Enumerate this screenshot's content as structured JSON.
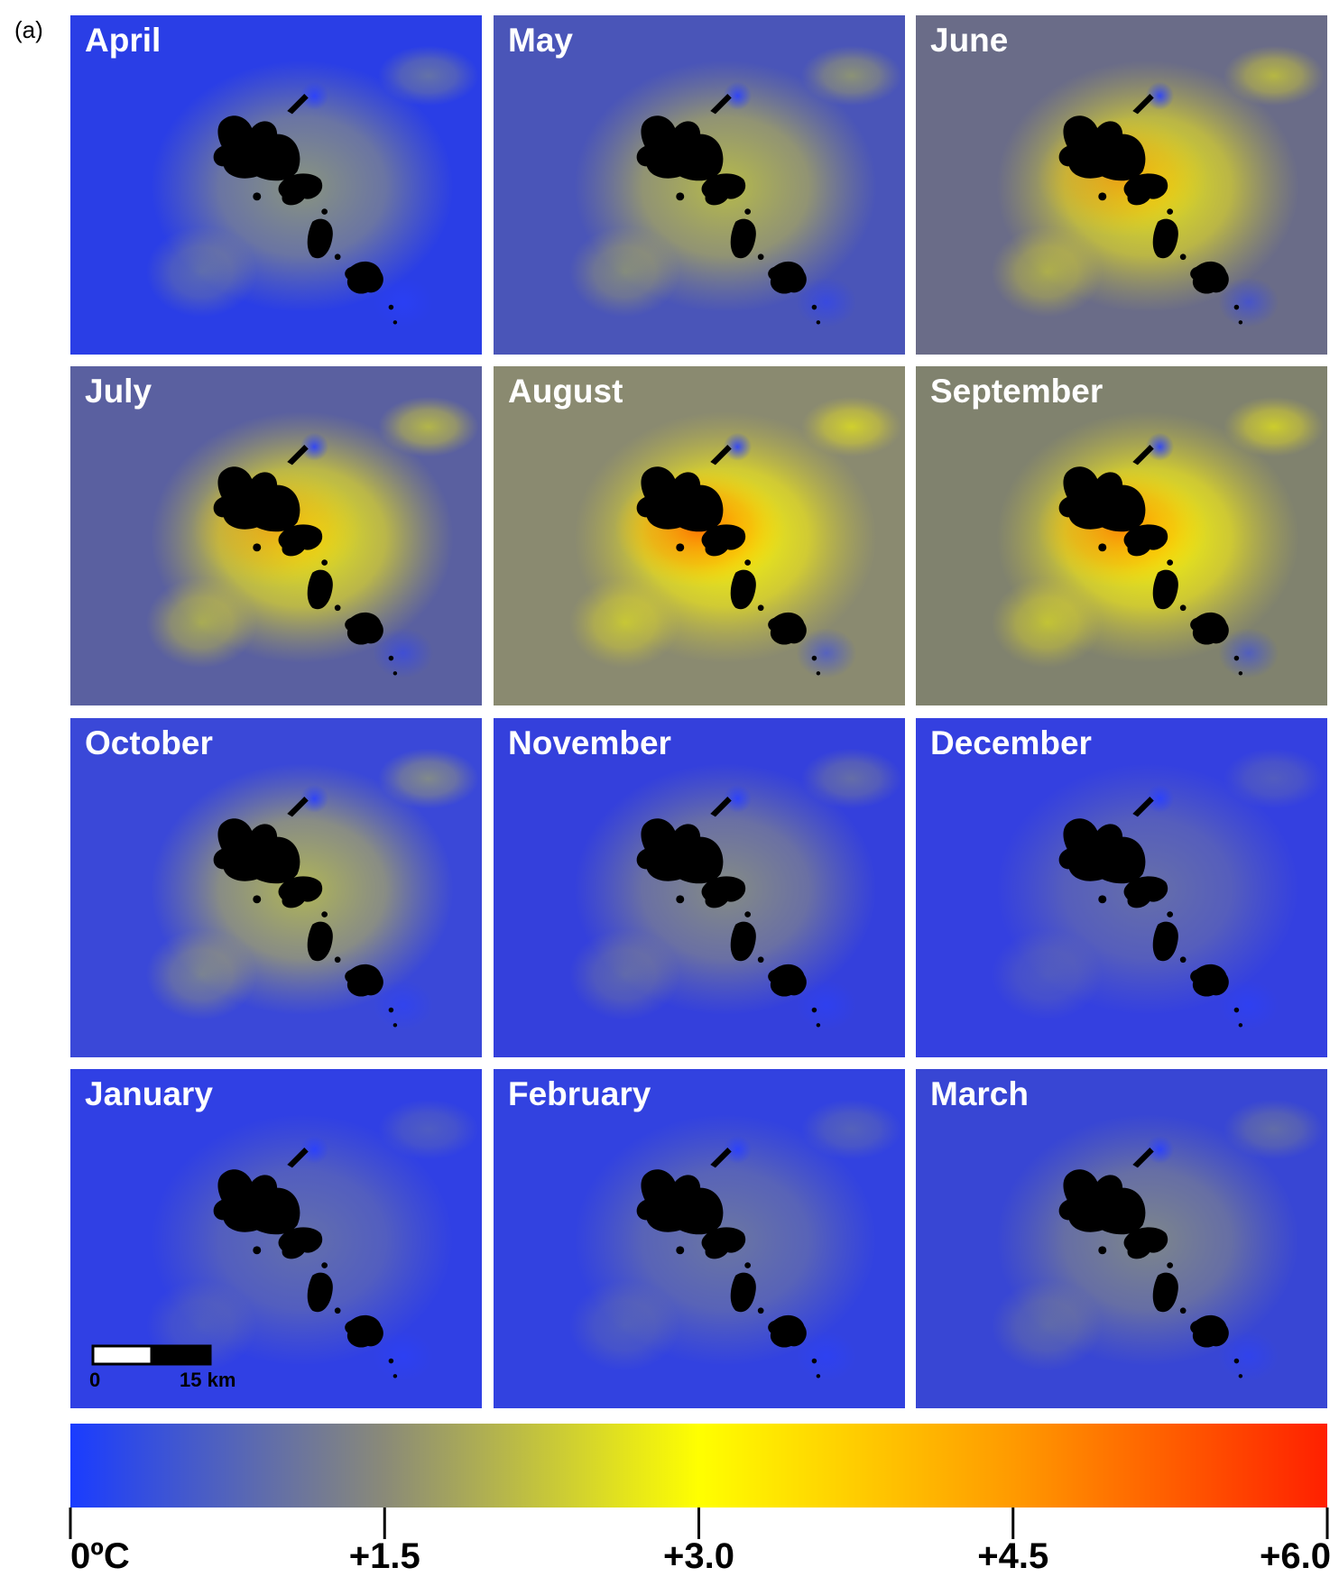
{
  "label": "(a)",
  "panels": [
    "April",
    "May",
    "June",
    "July",
    "August",
    "September",
    "October",
    "November",
    "December",
    "January",
    "February",
    "March"
  ],
  "scale_bar": {
    "labels": [
      "0",
      "15 km"
    ]
  },
  "colorbar": {
    "lim": [
      0,
      6
    ],
    "colors": [
      "#1a3cff",
      "#8a8a78",
      "#ffff00",
      "#ff9a00",
      "#ff2000"
    ],
    "ticks": [
      {
        "value": 0,
        "label": "0ºC"
      },
      {
        "value": 1.5,
        "label": "+1.5"
      },
      {
        "value": 3.0,
        "label": "+3.0"
      },
      {
        "value": 4.5,
        "label": "+4.5"
      },
      {
        "value": 6.0,
        "label": "+6.0"
      }
    ]
  }
}
